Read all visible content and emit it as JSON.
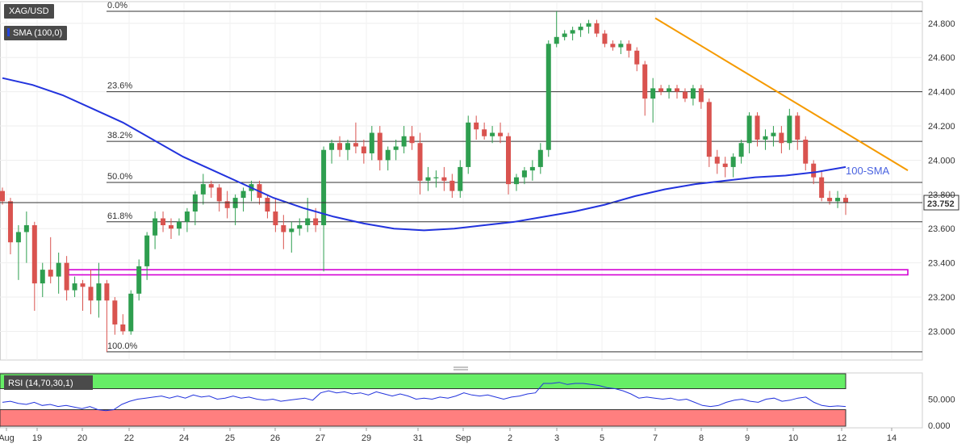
{
  "chart_data": {
    "type": "candlestick",
    "symbol": "XAG/USD",
    "indicator": "SMA (100,0)",
    "sma_label": "100-SMA",
    "current_price": "23.752",
    "ylim": [
      22.85,
      24.88
    ],
    "y_ticks": [
      "24.800",
      "24.600",
      "24.400",
      "24.200",
      "24.000",
      "23.800",
      "23.600",
      "23.400",
      "23.200",
      "23.000"
    ],
    "x_ticks": [
      "Aug",
      "19",
      "20",
      "22",
      "24",
      "25",
      "26",
      "27",
      "29",
      "31",
      "Sep",
      "2",
      "3",
      "5",
      "7",
      "8",
      "9",
      "10",
      "12",
      "14"
    ],
    "fib_levels": [
      {
        "label": "0.0%",
        "price": 24.87
      },
      {
        "label": "23.6%",
        "price": 24.4
      },
      {
        "label": "38.2%",
        "price": 24.11
      },
      {
        "label": "50.0%",
        "price": 23.87
      },
      {
        "label": "61.8%",
        "price": 23.64
      },
      {
        "label": "100.0%",
        "price": 22.88
      }
    ],
    "support_zone": {
      "top": 23.36,
      "bottom": 23.33
    },
    "trendline": {
      "start": 24.83,
      "end": 23.94
    },
    "candles": [
      [
        23.82,
        23.84,
        23.74,
        23.76
      ],
      [
        23.76,
        23.78,
        23.45,
        23.52
      ],
      [
        23.52,
        23.62,
        23.3,
        23.58
      ],
      [
        23.58,
        23.7,
        23.4,
        23.62
      ],
      [
        23.62,
        23.64,
        23.12,
        23.28
      ],
      [
        23.28,
        23.4,
        23.2,
        23.36
      ],
      [
        23.36,
        23.55,
        23.28,
        23.32
      ],
      [
        23.32,
        23.46,
        23.22,
        23.4
      ],
      [
        23.4,
        23.44,
        23.18,
        23.24
      ],
      [
        23.24,
        23.32,
        23.2,
        23.28
      ],
      [
        23.28,
        23.3,
        23.12,
        23.26
      ],
      [
        23.26,
        23.36,
        23.1,
        23.18
      ],
      [
        23.18,
        23.4,
        23.08,
        23.28
      ],
      [
        23.28,
        23.3,
        22.88,
        23.18
      ],
      [
        23.18,
        23.2,
        22.98,
        23.04
      ],
      [
        23.04,
        23.1,
        22.98,
        23.0
      ],
      [
        23.0,
        23.24,
        22.98,
        23.22
      ],
      [
        23.22,
        23.42,
        23.18,
        23.38
      ],
      [
        23.38,
        23.58,
        23.3,
        23.56
      ],
      [
        23.56,
        23.7,
        23.48,
        23.66
      ],
      [
        23.66,
        23.7,
        23.58,
        23.62
      ],
      [
        23.62,
        23.66,
        23.54,
        23.6
      ],
      [
        23.6,
        23.66,
        23.56,
        23.64
      ],
      [
        23.64,
        23.72,
        23.58,
        23.7
      ],
      [
        23.7,
        23.82,
        23.62,
        23.8
      ],
      [
        23.8,
        23.92,
        23.74,
        23.86
      ],
      [
        23.86,
        23.88,
        23.78,
        23.84
      ],
      [
        23.84,
        23.86,
        23.7,
        23.76
      ],
      [
        23.76,
        23.82,
        23.66,
        23.72
      ],
      [
        23.72,
        23.8,
        23.62,
        23.78
      ],
      [
        23.78,
        23.84,
        23.7,
        23.82
      ],
      [
        23.82,
        23.88,
        23.76,
        23.86
      ],
      [
        23.86,
        23.88,
        23.74,
        23.78
      ],
      [
        23.78,
        23.8,
        23.66,
        23.7
      ],
      [
        23.7,
        23.78,
        23.58,
        23.62
      ],
      [
        23.62,
        23.68,
        23.48,
        23.58
      ],
      [
        23.58,
        23.64,
        23.46,
        23.6
      ],
      [
        23.6,
        23.66,
        23.56,
        23.62
      ],
      [
        23.62,
        23.78,
        23.58,
        23.66
      ],
      [
        23.66,
        23.72,
        23.58,
        23.62
      ],
      [
        23.62,
        24.08,
        23.35,
        24.06
      ],
      [
        24.06,
        24.12,
        23.98,
        24.1
      ],
      [
        24.1,
        24.14,
        24.02,
        24.06
      ],
      [
        24.06,
        24.12,
        24.0,
        24.1
      ],
      [
        24.1,
        24.22,
        24.04,
        24.08
      ],
      [
        24.08,
        24.12,
        23.98,
        24.04
      ],
      [
        24.04,
        24.2,
        24.0,
        24.16
      ],
      [
        24.16,
        24.2,
        23.94,
        24.0
      ],
      [
        24.0,
        24.08,
        23.94,
        24.06
      ],
      [
        24.06,
        24.12,
        24.0,
        24.08
      ],
      [
        24.08,
        24.2,
        24.04,
        24.14
      ],
      [
        24.14,
        24.2,
        24.06,
        24.1
      ],
      [
        24.1,
        24.16,
        23.8,
        23.88
      ],
      [
        23.88,
        23.96,
        23.82,
        23.9
      ],
      [
        23.9,
        23.94,
        23.84,
        23.9
      ],
      [
        23.9,
        23.96,
        23.82,
        23.88
      ],
      [
        23.88,
        23.92,
        23.78,
        23.82
      ],
      [
        23.82,
        24.0,
        23.78,
        23.96
      ],
      [
        23.96,
        24.26,
        23.92,
        24.22
      ],
      [
        24.22,
        24.26,
        24.12,
        24.18
      ],
      [
        24.18,
        24.22,
        24.12,
        24.14
      ],
      [
        24.14,
        24.2,
        24.1,
        24.16
      ],
      [
        24.16,
        24.22,
        24.1,
        24.14
      ],
      [
        24.14,
        24.16,
        23.8,
        23.86
      ],
      [
        23.86,
        23.92,
        23.82,
        23.9
      ],
      [
        23.9,
        23.96,
        23.86,
        23.94
      ],
      [
        23.94,
        24.0,
        23.88,
        23.96
      ],
      [
        23.96,
        24.1,
        23.92,
        24.06
      ],
      [
        24.06,
        24.7,
        24.02,
        24.68
      ],
      [
        24.68,
        24.87,
        24.66,
        24.72
      ],
      [
        24.72,
        24.76,
        24.7,
        24.74
      ],
      [
        24.74,
        24.78,
        24.7,
        24.76
      ],
      [
        24.76,
        24.8,
        24.72,
        24.78
      ],
      [
        24.78,
        24.82,
        24.74,
        24.8
      ],
      [
        24.8,
        24.82,
        24.72,
        24.74
      ],
      [
        24.74,
        24.76,
        24.66,
        24.68
      ],
      [
        24.68,
        24.7,
        24.64,
        24.66
      ],
      [
        24.66,
        24.7,
        24.62,
        24.68
      ],
      [
        24.68,
        24.7,
        24.6,
        24.64
      ],
      [
        24.64,
        24.66,
        24.52,
        24.56
      ],
      [
        24.56,
        24.58,
        24.26,
        24.36
      ],
      [
        24.36,
        24.48,
        24.22,
        24.42
      ],
      [
        24.42,
        24.44,
        24.38,
        24.4
      ],
      [
        24.4,
        24.44,
        24.36,
        24.42
      ],
      [
        24.42,
        24.44,
        24.36,
        24.4
      ],
      [
        24.4,
        24.42,
        24.34,
        24.36
      ],
      [
        24.36,
        24.44,
        24.32,
        24.42
      ],
      [
        24.42,
        24.44,
        24.3,
        24.34
      ],
      [
        24.34,
        24.36,
        23.96,
        24.02
      ],
      [
        24.02,
        24.06,
        23.92,
        23.98
      ],
      [
        23.98,
        24.02,
        23.9,
        23.96
      ],
      [
        23.96,
        24.04,
        23.9,
        24.02
      ],
      [
        24.02,
        24.12,
        23.98,
        24.1
      ],
      [
        24.1,
        24.28,
        24.04,
        24.26
      ],
      [
        24.26,
        24.28,
        24.08,
        24.12
      ],
      [
        24.12,
        24.18,
        24.06,
        24.14
      ],
      [
        24.14,
        24.2,
        24.08,
        24.16
      ],
      [
        24.16,
        24.2,
        24.04,
        24.1
      ],
      [
        24.1,
        24.3,
        24.06,
        24.26
      ],
      [
        24.26,
        24.28,
        24.06,
        24.12
      ],
      [
        24.12,
        24.14,
        23.94,
        23.98
      ],
      [
        23.98,
        24.0,
        23.86,
        23.9
      ],
      [
        23.9,
        23.94,
        23.76,
        23.78
      ],
      [
        23.78,
        23.82,
        23.74,
        23.76
      ],
      [
        23.76,
        23.82,
        23.72,
        23.78
      ],
      [
        23.78,
        23.8,
        23.68,
        23.752
      ]
    ],
    "sma_values": [
      24.48,
      24.44,
      24.38,
      24.3,
      24.22,
      24.12,
      24.02,
      23.94,
      23.86,
      23.78,
      23.72,
      23.67,
      23.63,
      23.6,
      23.59,
      23.6,
      23.62,
      23.64,
      23.67,
      23.7,
      23.74,
      23.79,
      23.83,
      23.86,
      23.88,
      23.9,
      23.91,
      23.93,
      23.96
    ],
    "rsi": {
      "label": "RSI (14,70,30,1)",
      "upper": 70,
      "lower": 30,
      "y_ticks": [
        "50.000",
        "0.000"
      ],
      "values": [
        44,
        46,
        42,
        40,
        44,
        38,
        40,
        36,
        38,
        35,
        32,
        36,
        30,
        28,
        30,
        40,
        46,
        50,
        52,
        54,
        56,
        52,
        56,
        52,
        58,
        54,
        56,
        50,
        52,
        56,
        52,
        54,
        50,
        48,
        50,
        46,
        48,
        50,
        52,
        48,
        62,
        66,
        62,
        64,
        60,
        62,
        58,
        64,
        60,
        56,
        60,
        56,
        50,
        52,
        50,
        54,
        52,
        56,
        62,
        58,
        56,
        58,
        54,
        50,
        54,
        56,
        60,
        62,
        80,
        80,
        82,
        78,
        80,
        80,
        78,
        76,
        72,
        70,
        66,
        60,
        52,
        54,
        52,
        50,
        52,
        48,
        50,
        44,
        38,
        36,
        38,
        44,
        48,
        50,
        46,
        44,
        50,
        52,
        46,
        48,
        52,
        54,
        44,
        38,
        36,
        37,
        36
      ]
    }
  }
}
